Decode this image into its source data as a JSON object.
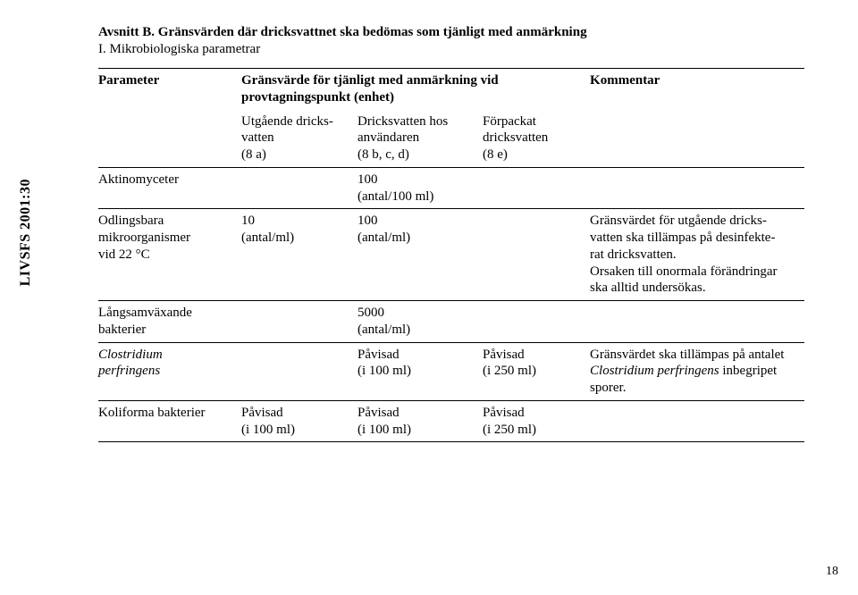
{
  "spine": "LIVSFS 2001:30",
  "page_number": "18",
  "section_title": "Avsnitt B. Gränsvärden där dricksvattnet ska bedömas som tjänligt med anmärkning",
  "subsection": "I. Mikrobiologiska parametrar",
  "header": {
    "col1": "Parameter",
    "span24_line1": "Gränsvärde för tjänligt med anmärkning vid",
    "span24_line2": "provtagningspunkt (enhet)",
    "col5": "Kommentar",
    "sub_col2_l1": "Utgående dricks-",
    "sub_col2_l2": "vatten",
    "sub_col2_l3": "(8 a)",
    "sub_col3_l1": "Dricksvatten hos",
    "sub_col3_l2": "användaren",
    "sub_col3_l3": "(8 b, c, d)",
    "sub_col4_l1": "Förpackat",
    "sub_col4_l2": "dricksvatten",
    "sub_col4_l3": "(8 e)"
  },
  "rows": {
    "aktino": {
      "c1": "Aktinomyceter",
      "c3_l1": "100",
      "c3_l2": "(antal/100 ml)"
    },
    "odlings": {
      "c1_l1": "Odlingsbara",
      "c1_l2": "mikroorganismer",
      "c1_l3": "vid 22 °C",
      "c2_l1": "10",
      "c2_l2": "(antal/ml)",
      "c3_l1": "100",
      "c3_l2": "(antal/ml)",
      "c5_l1": "Gränsvärdet för utgående dricks-",
      "c5_l2": "vatten ska tillämpas på desinfekte-",
      "c5_l3": "rat dricksvatten.",
      "c5_l4": "Orsaken till onormala förändringar",
      "c5_l5": "ska alltid undersökas."
    },
    "langs": {
      "c1_l1": "Långsamväxande",
      "c1_l2": "bakterier",
      "c3_l1": "5000",
      "c3_l2": "(antal/ml)"
    },
    "clost": {
      "c1_l1": "Clostridium",
      "c1_l2": "perfringens",
      "c3_l1": "Påvisad",
      "c3_l2": "(i 100 ml)",
      "c4_l1": "Påvisad",
      "c4_l2": "(i 250 ml)",
      "c5_l1": "Gränsvärdet ska tillämpas på antalet",
      "c5_l2a": "Clostridium perfringens",
      "c5_l2b": " inbegripet",
      "c5_l3": "sporer."
    },
    "koli": {
      "c1": "Koliforma bakterier",
      "c2_l1": "Påvisad",
      "c2_l2": "(i 100 ml)",
      "c3_l1": "Påvisad",
      "c3_l2": "(i 100 ml)",
      "c4_l1": "Påvisad",
      "c4_l2": "(i 250 ml)"
    }
  }
}
